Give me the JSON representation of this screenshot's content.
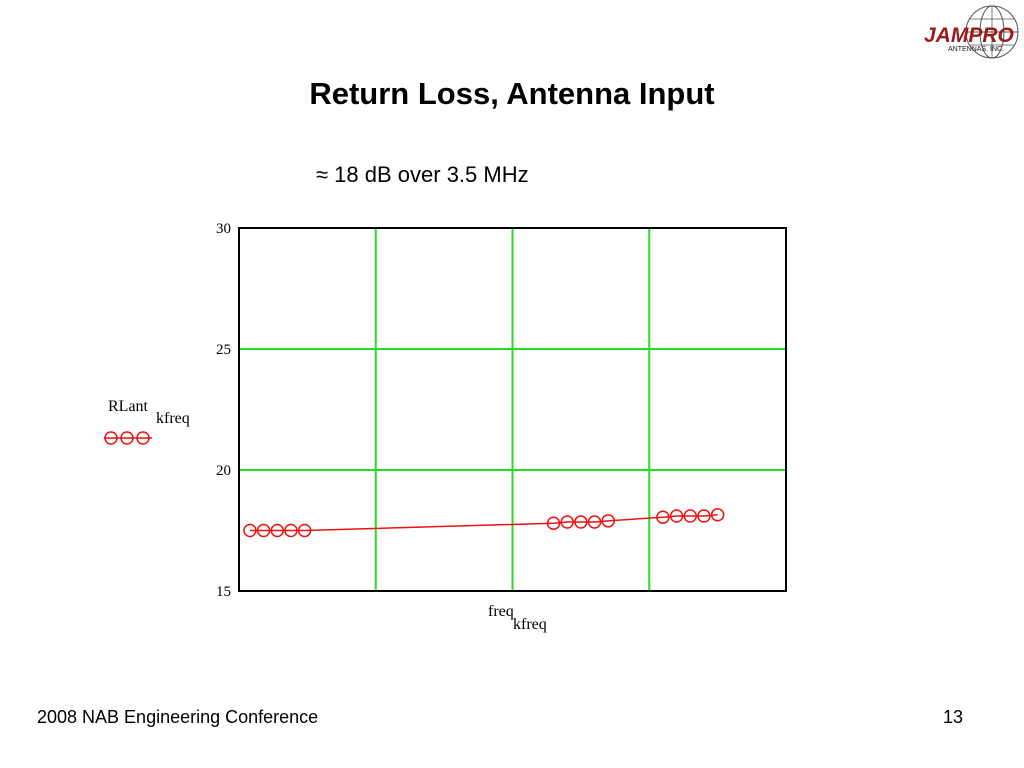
{
  "slide": {
    "title": "Return Loss, Antenna Input",
    "subtitle": "≈ 18 dB over 3.5 MHz",
    "footer_left": "2008 NAB Engineering Conference",
    "page_number": "13"
  },
  "logo": {
    "brand_text": "JAMPRO",
    "sub_text": "ANTENNAS, INC.",
    "color": "#9b1b1b"
  },
  "chart_data": {
    "type": "line",
    "ylabel": "RLant",
    "ylabel_sub": "kfreq",
    "xlabel": "freq",
    "xlabel_sub": "kfreq",
    "ylim": [
      15,
      30
    ],
    "yticks": [
      "30",
      "25",
      "20",
      "15"
    ],
    "xlim": [
      0,
      1
    ],
    "grid": true,
    "grid_color": "#22dd22",
    "series_color": "#ee1111",
    "legend": "left",
    "series": [
      {
        "x": [
          0.02,
          0.045,
          0.07,
          0.095,
          0.12,
          0.575,
          0.6,
          0.625,
          0.65,
          0.675,
          0.775,
          0.8,
          0.825,
          0.85,
          0.875
        ],
        "values": [
          17.5,
          17.5,
          17.5,
          17.5,
          17.5,
          17.8,
          17.85,
          17.85,
          17.85,
          17.9,
          18.05,
          18.1,
          18.1,
          18.1,
          18.15
        ]
      }
    ]
  }
}
